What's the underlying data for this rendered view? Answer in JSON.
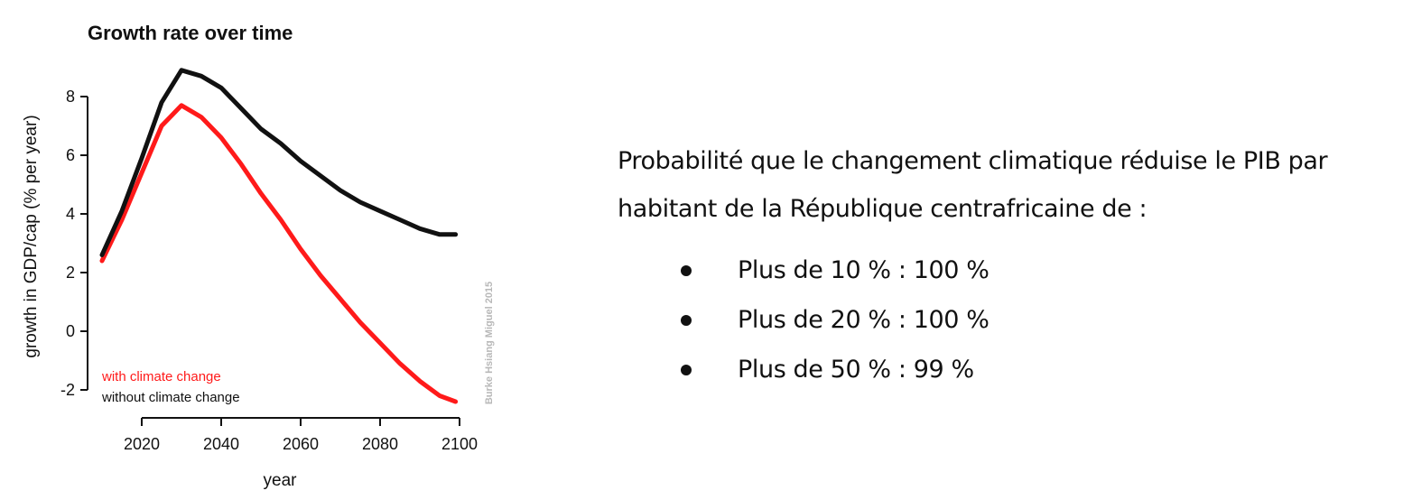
{
  "chart_data": {
    "type": "line",
    "title": "Growth rate over time",
    "xlabel": "year",
    "ylabel": "growth in GDP/cap (% per year)",
    "xlim": [
      2010,
      2100
    ],
    "ylim": [
      -2.5,
      9
    ],
    "xticks": [
      2020,
      2040,
      2060,
      2080,
      2100
    ],
    "yticks": [
      -2,
      0,
      2,
      4,
      6,
      8
    ],
    "grid": false,
    "legend": "bottom-left",
    "credit": "Burke Hsiang Miguel 2015",
    "series": [
      {
        "name": "with climate change",
        "color": "#ff1a1a",
        "x": [
          2010,
          2015,
          2020,
          2025,
          2030,
          2035,
          2040,
          2045,
          2050,
          2055,
          2060,
          2065,
          2070,
          2075,
          2080,
          2085,
          2090,
          2095,
          2099
        ],
        "y": [
          2.4,
          3.8,
          5.4,
          7.0,
          7.7,
          7.3,
          6.6,
          5.7,
          4.7,
          3.8,
          2.8,
          1.9,
          1.1,
          0.3,
          -0.4,
          -1.1,
          -1.7,
          -2.2,
          -2.4
        ]
      },
      {
        "name": "without climate change",
        "color": "#111111",
        "x": [
          2010,
          2015,
          2020,
          2025,
          2030,
          2035,
          2040,
          2045,
          2050,
          2055,
          2060,
          2065,
          2070,
          2075,
          2080,
          2085,
          2090,
          2095,
          2099
        ],
        "y": [
          2.6,
          4.1,
          5.9,
          7.8,
          8.9,
          8.7,
          8.3,
          7.6,
          6.9,
          6.4,
          5.8,
          5.3,
          4.8,
          4.4,
          4.1,
          3.8,
          3.5,
          3.3,
          3.3
        ]
      }
    ]
  },
  "info": {
    "text": "Probabilité que le changement climatique réduise le PIB par habitant de la République centrafricaine de :",
    "items": [
      "Plus de 10 % : 100 %",
      "Plus de 20 % : 100 %",
      "Plus de 50 % : 99 %"
    ]
  }
}
